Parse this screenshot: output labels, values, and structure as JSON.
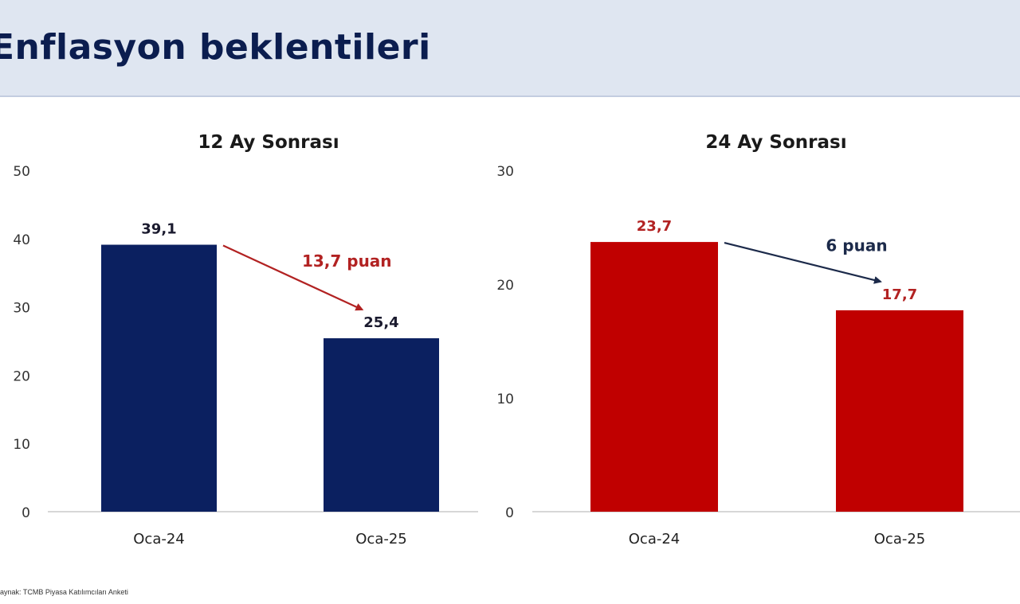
{
  "header": {
    "title": "Enflasyon beklentileri"
  },
  "source": "Kaynak: TCMB Piyasa Katılımcıları Anketi",
  "colors": {
    "navy": "#0b2060",
    "red": "#c00000",
    "header_bg": "#dfe6f1"
  },
  "chart_data": [
    {
      "type": "bar",
      "title": "12 Ay Sonrası",
      "categories": [
        "Oca-24",
        "Oca-25"
      ],
      "values": [
        39.1,
        25.4
      ],
      "value_labels": [
        "39,1",
        "25,4"
      ],
      "ylim": [
        0,
        50
      ],
      "yticks": [
        0,
        10,
        20,
        30,
        40,
        50
      ],
      "bar_color": "#0b2060",
      "label_color": "#1a1a2e",
      "annotation": {
        "text": "13,7 puan",
        "color": "#b22222"
      }
    },
    {
      "type": "bar",
      "title": "24 Ay Sonrası",
      "categories": [
        "Oca-24",
        "Oca-25"
      ],
      "values": [
        23.7,
        17.7
      ],
      "value_labels": [
        "23,7",
        "17,7"
      ],
      "ylim": [
        0,
        30
      ],
      "yticks": [
        0,
        10,
        20,
        30
      ],
      "bar_color": "#c00000",
      "label_color": "#b22222",
      "annotation": {
        "text": "6 puan",
        "color": "#1c2a4a"
      }
    }
  ]
}
